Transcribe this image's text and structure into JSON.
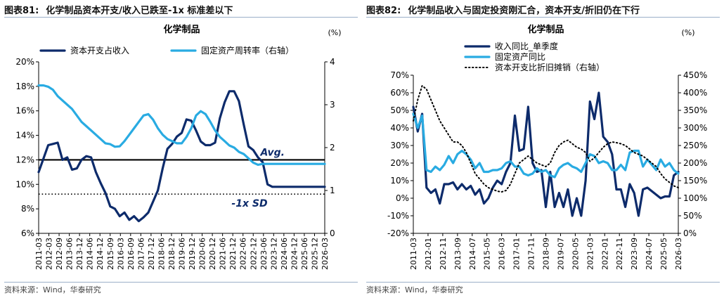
{
  "colors": {
    "dark_navy": "#0d2b6b",
    "light_blue": "#29abe2",
    "black": "#000000",
    "rule": "#9bb0c8"
  },
  "left": {
    "fig_number": "图表81:",
    "fig_title": "化学制品资本开支/收入已跌至-1x 标准差以下",
    "source": "资料来源：Wind，华泰研究"
  },
  "right": {
    "fig_number": "图表82:",
    "fig_title": "化学制品收入与固定投资刚汇合，资本开支/折旧仍在下行",
    "source": "资料来源：Wind，华泰研究"
  },
  "chart_data": [
    {
      "type": "line",
      "title": "化学制品",
      "y2unit": "(%)",
      "x": [
        "2011-03",
        "2011-06",
        "2011-09",
        "2011-12",
        "2012-03",
        "2012-06",
        "2012-09",
        "2012-12",
        "2013-03",
        "2013-06",
        "2013-09",
        "2013-12",
        "2014-03",
        "2014-06",
        "2014-09",
        "2014-12",
        "2015-03",
        "2015-06",
        "2015-09",
        "2015-12",
        "2016-03",
        "2016-06",
        "2016-09",
        "2016-12",
        "2017-03",
        "2017-06",
        "2017-09",
        "2017-12",
        "2018-03",
        "2018-06",
        "2018-09",
        "2018-12",
        "2019-03",
        "2019-06",
        "2019-09",
        "2019-12",
        "2020-03",
        "2020-06",
        "2020-09",
        "2020-12",
        "2021-03",
        "2021-06",
        "2021-09",
        "2021-12",
        "2022-03",
        "2022-06",
        "2022-09",
        "2022-12",
        "2023-03",
        "2023-06",
        "2023-09",
        "2023-12",
        "2024-03",
        "2024-06",
        "2024-09",
        "2024-12",
        "2025-03",
        "2025-06",
        "2025-09",
        "2025-12",
        "2026-03"
      ],
      "xticks": [
        "2011-03",
        "2012-03",
        "2012-09",
        "2013-06",
        "2013-12",
        "2014-06",
        "2014-12",
        "2015-09",
        "2016-03",
        "2016-09",
        "2017-06",
        "2017-12",
        "2018-06",
        "2018-12",
        "2019-06",
        "2019-12",
        "2020-06",
        "2020-12",
        "2021-06",
        "2021-12",
        "2022-06",
        "2022-12",
        "2023-06",
        "2023-12",
        "2024-06",
        "2024-12",
        "2025-06",
        "2025-12",
        "2026-03"
      ],
      "xticks_all": [
        "2011-03",
        "2012-03",
        "2012-09",
        "2013-06",
        "2013-12",
        "2014-06",
        "2014-12",
        "2015-06",
        "2015-12",
        "2016-06",
        "2016-12",
        "2017-06",
        "2017-12",
        "2018-06",
        "2018-12",
        "2019-06",
        "2019-12",
        "2020-06",
        "2020-12",
        "2021-06",
        "2021-12",
        "2022-06",
        "2022-12",
        "2023-06",
        "2023-12",
        "2024-06",
        "2024-12",
        "2025-06",
        "2026-03"
      ],
      "ylim": [
        6,
        20
      ],
      "yticks": [
        "6%",
        "8%",
        "10%",
        "12%",
        "14%",
        "16%",
        "18%",
        "20%"
      ],
      "y2lim": [
        0,
        4
      ],
      "y2ticks": [
        "0",
        "1",
        "2",
        "3",
        "4"
      ],
      "series": [
        {
          "name": "资本开支占收入",
          "axis": "left",
          "color": "#0d2b6b",
          "values": [
            11.0,
            12.1,
            13.2,
            13.3,
            13.4,
            12.0,
            12.2,
            11.2,
            11.3,
            12.0,
            12.3,
            12.2,
            11.0,
            10.1,
            9.3,
            8.2,
            8.0,
            7.4,
            7.7,
            7.1,
            7.4,
            7.0,
            7.3,
            7.7,
            8.6,
            9.5,
            11.3,
            12.9,
            13.3,
            13.9,
            14.2,
            15.3,
            15.2,
            14.4,
            13.5,
            13.2,
            13.2,
            13.4,
            15.4,
            16.7,
            17.6,
            17.6,
            16.8,
            14.9,
            13.1,
            12.8,
            12.2,
            11.8,
            10.0,
            9.8,
            9.8,
            9.8,
            9.8,
            9.8,
            9.8,
            9.8,
            9.8,
            9.8,
            9.8,
            9.8,
            9.8
          ]
        },
        {
          "name": "固定资产周转率（右轴）",
          "axis": "right",
          "color": "#29abe2",
          "values": [
            3.45,
            3.45,
            3.42,
            3.35,
            3.2,
            3.1,
            3.0,
            2.9,
            2.75,
            2.6,
            2.5,
            2.4,
            2.3,
            2.2,
            2.1,
            2.08,
            2.02,
            2.03,
            2.15,
            2.3,
            2.45,
            2.6,
            2.75,
            2.78,
            2.65,
            2.45,
            2.3,
            2.2,
            2.15,
            2.1,
            2.1,
            2.25,
            2.45,
            2.75,
            2.85,
            2.78,
            2.6,
            2.4,
            2.25,
            2.15,
            2.05,
            2.0,
            1.9,
            1.85,
            1.75,
            1.65,
            1.6,
            1.62,
            1.62,
            1.62,
            1.62,
            1.62,
            1.62,
            1.62,
            1.62,
            1.62,
            1.62,
            1.62,
            1.62,
            1.62,
            1.62
          ]
        }
      ],
      "reference_lines": [
        {
          "label": "Avg.",
          "value": 12.0,
          "style": "solid"
        },
        {
          "label": "-1x SD",
          "value": 9.2,
          "style": "dotted"
        }
      ],
      "legend": "top"
    },
    {
      "type": "line",
      "title": "化学制品",
      "y2unit": "(%)",
      "x": [
        "2011-03",
        "2011-06",
        "2011-09",
        "2011-12",
        "2012-03",
        "2012-06",
        "2012-09",
        "2012-12",
        "2013-03",
        "2013-06",
        "2013-09",
        "2013-12",
        "2014-03",
        "2014-06",
        "2014-09",
        "2014-12",
        "2015-03",
        "2015-06",
        "2015-09",
        "2015-12",
        "2016-03",
        "2016-06",
        "2016-09",
        "2016-12",
        "2017-03",
        "2017-06",
        "2017-09",
        "2017-12",
        "2018-03",
        "2018-06",
        "2018-09",
        "2018-12",
        "2019-03",
        "2019-06",
        "2019-09",
        "2019-12",
        "2020-03",
        "2020-06",
        "2020-09",
        "2020-12",
        "2021-03",
        "2021-06",
        "2021-09",
        "2021-12",
        "2022-03",
        "2022-06",
        "2022-09",
        "2022-12",
        "2023-03",
        "2023-06",
        "2023-09",
        "2023-12",
        "2024-03",
        "2024-06",
        "2024-09",
        "2024-12",
        "2025-03",
        "2025-06",
        "2025-09",
        "2025-12",
        "2026-03"
      ],
      "xticks": [
        "2011-03",
        "2012-01",
        "2012-11",
        "2013-09",
        "2014-07",
        "2015-05",
        "2016-03",
        "2017-01",
        "2017-11",
        "2018-09",
        "2019-07",
        "2020-05",
        "2021-03",
        "2022-01",
        "2022-11",
        "2023-09",
        "2024-07",
        "2025-05",
        "2026-03"
      ],
      "ylim": [
        -20,
        70
      ],
      "yticks": [
        "-20%",
        "-10%",
        "0%",
        "10%",
        "20%",
        "30%",
        "40%",
        "50%",
        "60%",
        "70%"
      ],
      "y2lim": [
        0,
        450
      ],
      "y2ticks": [
        "0%",
        "50%",
        "100%",
        "150%",
        "200%",
        "250%",
        "300%",
        "350%",
        "400%",
        "450%"
      ],
      "series": [
        {
          "name": "收入同比_单季度",
          "axis": "left",
          "color": "#0d2b6b",
          "values": [
            52,
            38,
            48,
            6,
            3,
            5,
            -3,
            8,
            8,
            9,
            5,
            8,
            5,
            7,
            2,
            5,
            -3,
            0,
            6,
            10,
            8,
            15,
            20,
            47,
            27,
            28,
            52,
            20,
            15,
            16,
            -5,
            15,
            -5,
            3,
            -5,
            5,
            -10,
            0,
            -10,
            10,
            55,
            45,
            60,
            35,
            32,
            25,
            5,
            5,
            -5,
            8,
            3,
            -10,
            5,
            6,
            4,
            2,
            0,
            1,
            1,
            13,
            15
          ]
        },
        {
          "name": "固定资产同比",
          "axis": "left",
          "color": "#29abe2",
          "values": [
            48,
            40,
            47,
            16,
            15,
            18,
            16,
            19,
            24,
            20,
            25,
            27,
            25,
            22,
            17,
            20,
            15,
            15,
            16,
            16,
            17,
            20,
            21,
            18,
            18,
            14,
            13,
            14,
            17,
            15,
            16,
            13,
            12,
            17,
            19,
            20,
            18,
            17,
            15,
            20,
            25,
            24,
            20,
            21,
            20,
            16,
            16,
            19,
            16,
            26,
            27,
            27,
            18,
            22,
            19,
            16,
            22,
            18,
            20,
            16,
            14
          ]
        },
        {
          "name": "资本开支比折旧摊销（右轴）",
          "axis": "right",
          "color": "#000000",
          "style": "dotted",
          "values": [
            320,
            380,
            420,
            410,
            380,
            350,
            320,
            300,
            280,
            260,
            260,
            250,
            230,
            200,
            170,
            155,
            140,
            130,
            125,
            120,
            118,
            122,
            140,
            170,
            200,
            210,
            220,
            210,
            200,
            195,
            190,
            200,
            230,
            250,
            260,
            265,
            255,
            245,
            240,
            230,
            205,
            215,
            230,
            245,
            255,
            260,
            258,
            255,
            250,
            240,
            230,
            225,
            220,
            210,
            200,
            190,
            170,
            155,
            145,
            135,
            130
          ]
        }
      ],
      "legend": "top-left"
    }
  ]
}
